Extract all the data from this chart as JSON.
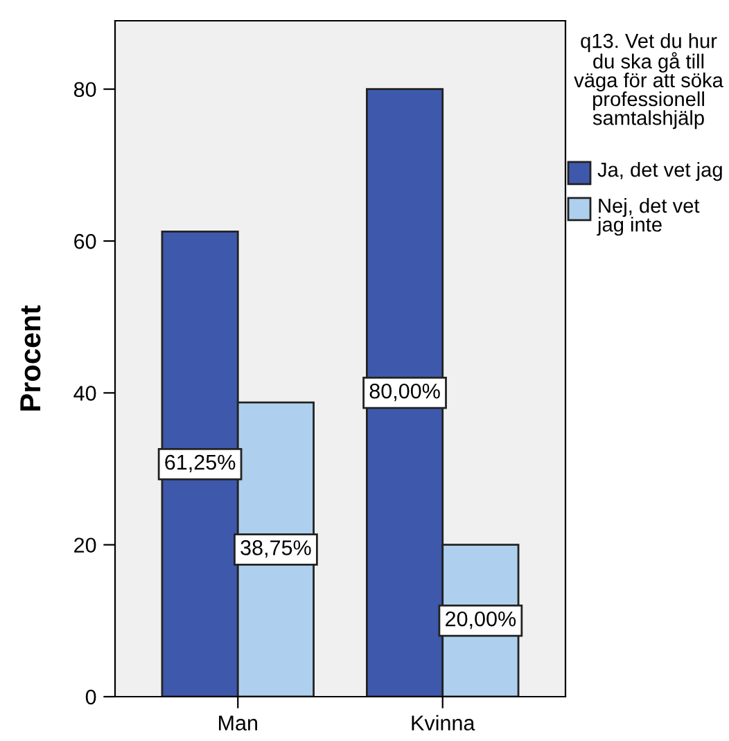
{
  "chart_data": {
    "type": "bar",
    "ylabel": "Procent",
    "legend_title": "q13. Vet du hur du ska gå till väga för att söka professionell samtalshjälp",
    "categories": [
      "Man",
      "Kvinna"
    ],
    "series": [
      {
        "name": "Ja, det vet jag",
        "color": "#3e58ac",
        "values": [
          61.25,
          80.0
        ],
        "value_labels": [
          "61,25%",
          "80,00%"
        ]
      },
      {
        "name": "Nej, det vet jag inte",
        "color": "#aed0ee",
        "values": [
          38.75,
          20.0
        ],
        "value_labels": [
          "38,75%",
          "20,00%"
        ]
      }
    ],
    "ylim": [
      0,
      89
    ],
    "yticks": [
      0,
      20,
      40,
      60,
      80
    ],
    "grid": false,
    "legend": "right"
  }
}
